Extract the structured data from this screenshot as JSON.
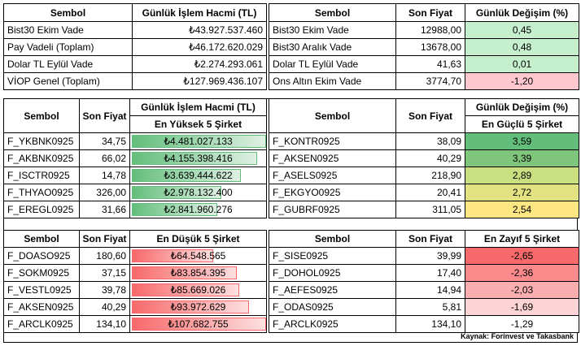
{
  "top_left": {
    "headers": [
      "Sembol",
      "Günlük İşlem Hacmi (TL)"
    ],
    "rows": [
      {
        "sym": "Bist30 Ekim Vade",
        "val": "₺43.927.537.460"
      },
      {
        "sym": "Pay Vadeli (Toplam)",
        "val": "₺46.172.620.029"
      },
      {
        "sym": "Dolar TL Eylül Vade",
        "val": "₺2.274.293.061"
      },
      {
        "sym": "VİOP Genel (Toplam)",
        "val": "₺127.969.436.107"
      }
    ]
  },
  "top_right": {
    "headers": [
      "Sembol",
      "Son Fiyat",
      "Günlük Değişim (%)"
    ],
    "rows": [
      {
        "sym": "Bist30 Ekim Vade",
        "price": "12988,00",
        "chg": "0,45",
        "color": "#c6efce"
      },
      {
        "sym": "Bist30 Aralık Vade",
        "price": "13678,00",
        "chg": "0,48",
        "color": "#c6efce"
      },
      {
        "sym": "Dolar TL Eylül Vade",
        "price": "41,63",
        "chg": "0,01",
        "color": "#c6efce"
      },
      {
        "sym": "Ons Altın Ekim Vade",
        "price": "3774,70",
        "chg": "-1,20",
        "color": "#ffc7ce"
      }
    ]
  },
  "mid_left": {
    "headers": [
      "Sembol",
      "Son Fiyat",
      "Günlük İşlem Hacmi (TL)"
    ],
    "subheader": "En Yüksek 5 Şirket",
    "rows": [
      {
        "sym": "F_YKBNK0925",
        "price": "34,75",
        "val": "₺4.481.027.133",
        "level": 1.0
      },
      {
        "sym": "F_AKBNK0925",
        "price": "66,02",
        "val": "₺4.155.398.416",
        "level": 0.93
      },
      {
        "sym": "F_ISCTR0925",
        "price": "14,78",
        "val": "₺3.639.444.622",
        "level": 0.81
      },
      {
        "sym": "F_THYAO0925",
        "price": "326,00",
        "val": "₺2.978.132.400",
        "level": 0.66
      },
      {
        "sym": "F_EREGL0925",
        "price": "31,66",
        "val": "₺2.841.960.276",
        "level": 0.63
      }
    ]
  },
  "mid_right": {
    "headers": [
      "Sembol",
      "Son Fiyat",
      "Günlük Değişim (%)"
    ],
    "subheader": "En Güçlü 5 Şirket",
    "rows": [
      {
        "sym": "F_KONTR0925",
        "price": "38,09",
        "chg": "3,59",
        "color": "#63be7b"
      },
      {
        "sym": "F_AKSEN0925",
        "price": "40,29",
        "chg": "3,39",
        "color": "#7fc67c"
      },
      {
        "sym": "F_ASELS0925",
        "price": "218,90",
        "chg": "2,89",
        "color": "#c9df80"
      },
      {
        "sym": "F_EKGYO0925",
        "price": "20,41",
        "chg": "2,72",
        "color": "#e2e282"
      },
      {
        "sym": "F_GUBRF0925",
        "price": "311,05",
        "chg": "2,54",
        "color": "#fee683"
      }
    ]
  },
  "bot_left": {
    "headers": [
      "Sembol",
      "Son Fiyat",
      "En Düşük 5 Şirket"
    ],
    "rows": [
      {
        "sym": "F_DOASO925",
        "price": "180,60",
        "val": "₺64.548.565",
        "level": 0.6
      },
      {
        "sym": "F_SOKM0925",
        "price": "37,15",
        "val": "₺83.854.395",
        "level": 0.78
      },
      {
        "sym": "F_VESTL0925",
        "price": "39,78",
        "val": "₺85.669.026",
        "level": 0.8
      },
      {
        "sym": "F_AKSEN0925",
        "price": "40,29",
        "val": "₺93.972.629",
        "level": 0.87
      },
      {
        "sym": "F_ARCLK0925",
        "price": "134,10",
        "val": "₺107.682.755",
        "level": 1.0
      }
    ]
  },
  "bot_right": {
    "headers": [
      "Sembol",
      "Son Fiyat",
      "En Zayıf 5 Şirket"
    ],
    "rows": [
      {
        "sym": "F_SISE0925",
        "price": "39,99",
        "chg": "-2,65",
        "color": "#f8696b"
      },
      {
        "sym": "F_DOHOL0925",
        "price": "17,40",
        "chg": "-2,36",
        "color": "#fa8a8c"
      },
      {
        "sym": "F_AEFES0925",
        "price": "14,94",
        "chg": "-2,03",
        "color": "#fbaeb0"
      },
      {
        "sym": "F_ODAS0925",
        "price": "5,81",
        "chg": "-1,69",
        "color": "#fdd4d5"
      },
      {
        "sym": "F_ARCLK0925",
        "price": "134,10",
        "chg": "-1,29",
        "color": "#ffffff"
      }
    ]
  },
  "source": "Kaynak: Forinvest ve Takasbank"
}
